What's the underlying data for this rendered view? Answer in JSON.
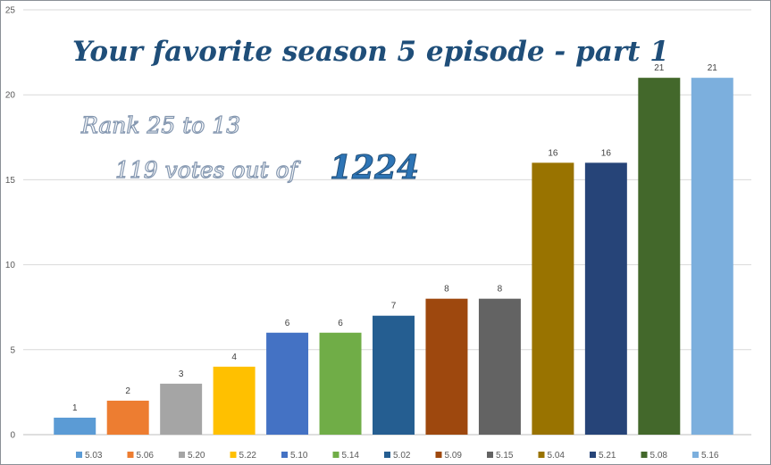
{
  "chart_data": {
    "type": "bar",
    "title": "Your favorite season 5 episode - part 1",
    "subtitle_line1": "Rank 25 to 13",
    "subtitle_line2_prefix": "119 votes out of",
    "subtitle_line2_total": "1224",
    "categories": [
      "5.03",
      "5.06",
      "5.20",
      "5.22",
      "5.10",
      "5.14",
      "5.02",
      "5.09",
      "5.15",
      "5.04",
      "5.21",
      "5.08",
      "5.16"
    ],
    "values": [
      1,
      2,
      3,
      4,
      6,
      6,
      7,
      8,
      8,
      16,
      16,
      21,
      21
    ],
    "colors": [
      "#5b9bd5",
      "#ed7d31",
      "#a5a5a5",
      "#ffc000",
      "#4472c4",
      "#70ad47",
      "#255e91",
      "#9e480e",
      "#636363",
      "#997300",
      "#264478",
      "#43682b",
      "#7cafdd"
    ],
    "ylim": [
      0,
      25
    ],
    "yticks": [
      0,
      5,
      10,
      15,
      20,
      25
    ],
    "grid": true,
    "legend_position": "bottom",
    "data_labels": true
  }
}
